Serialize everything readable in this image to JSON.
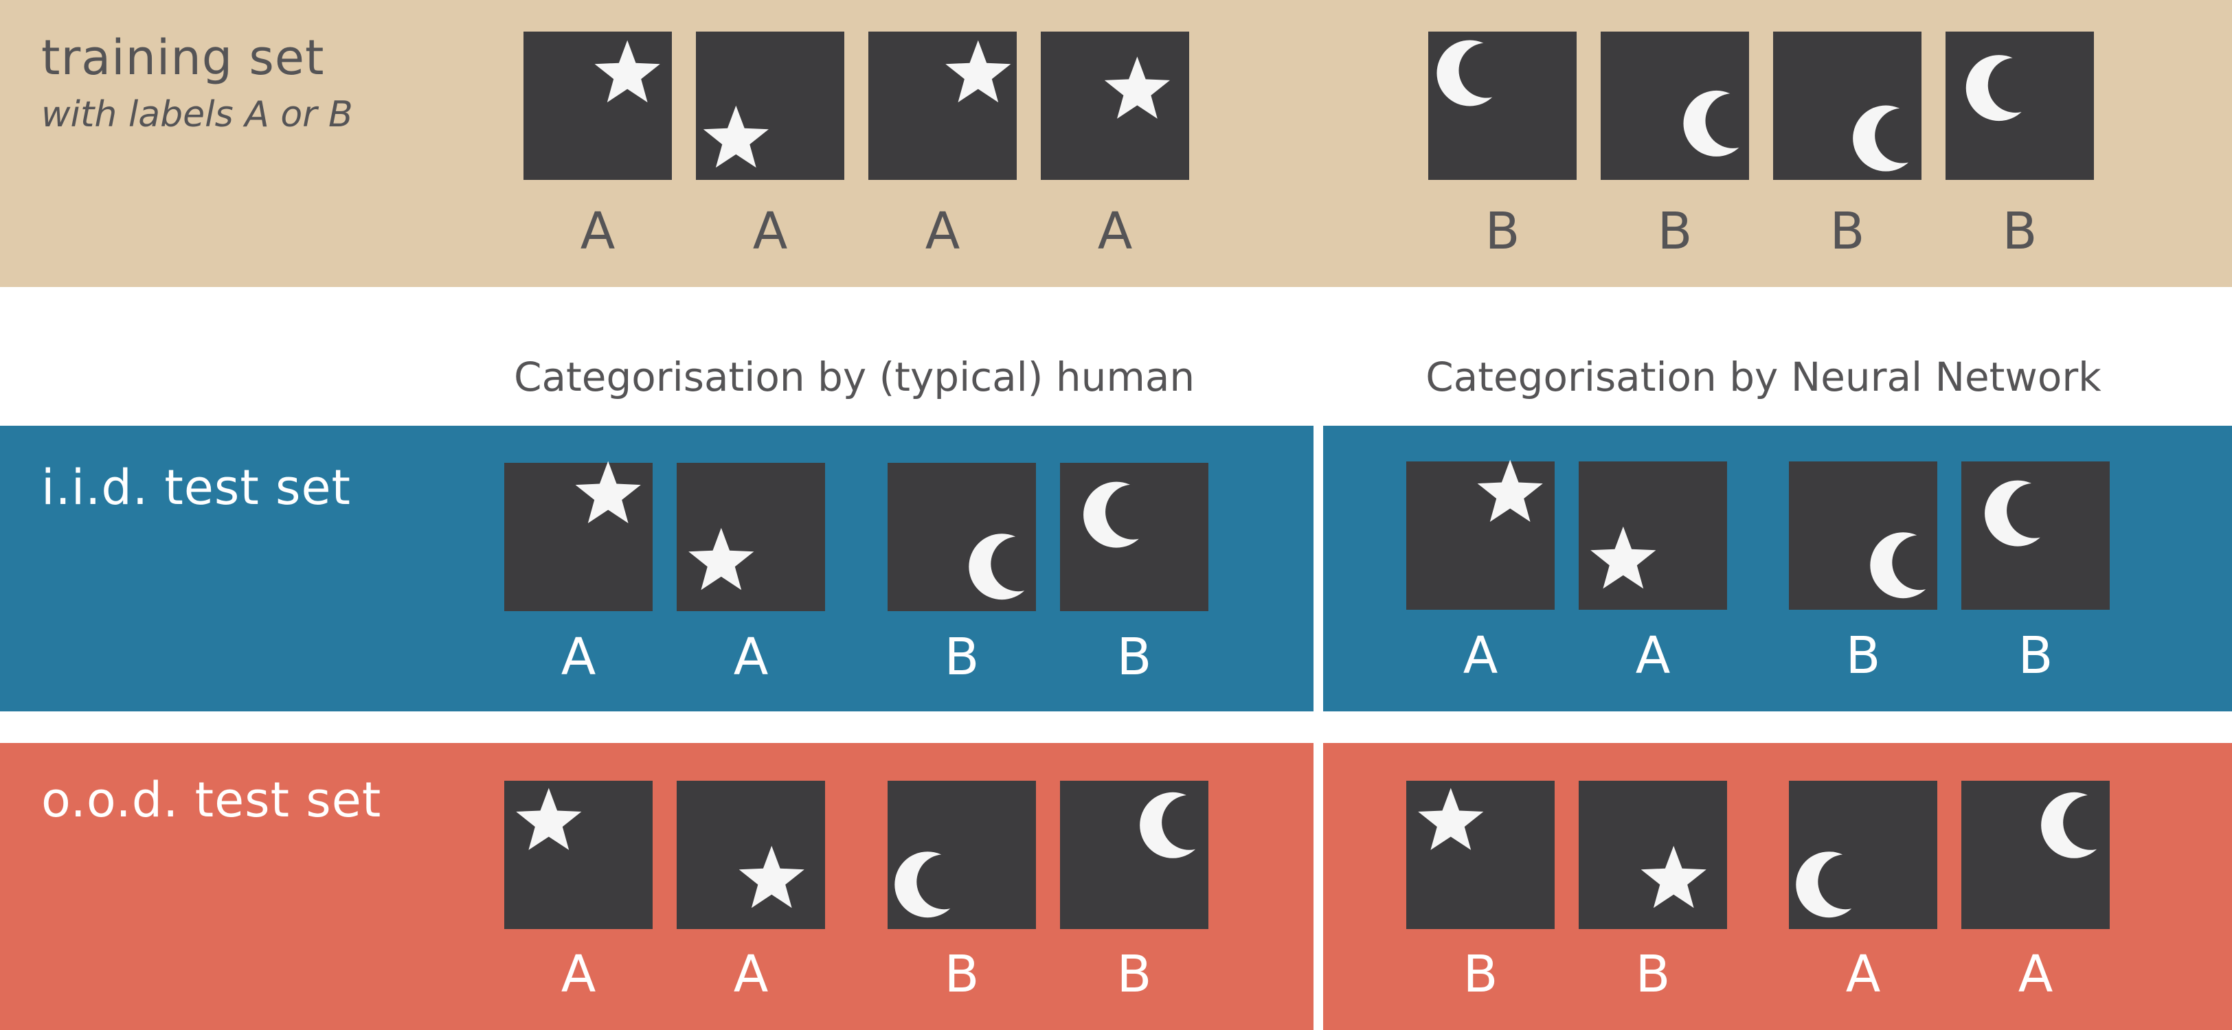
{
  "training": {
    "title": "training set",
    "subtitle": "with labels A or B",
    "tiles": [
      {
        "shape": "star",
        "fx": 0.7,
        "fy": 0.29,
        "label": "A"
      },
      {
        "shape": "star",
        "fx": 0.27,
        "fy": 0.73,
        "label": "A"
      },
      {
        "shape": "star",
        "fx": 0.74,
        "fy": 0.29,
        "label": "A"
      },
      {
        "shape": "star",
        "fx": 0.65,
        "fy": 0.4,
        "label": "A"
      },
      {
        "shape": "moon",
        "fx": 0.28,
        "fy": 0.28,
        "label": "B"
      },
      {
        "shape": "moon",
        "fx": 0.78,
        "fy": 0.62,
        "label": "B"
      },
      {
        "shape": "moon",
        "fx": 0.76,
        "fy": 0.72,
        "label": "B"
      },
      {
        "shape": "moon",
        "fx": 0.36,
        "fy": 0.38,
        "label": "B"
      }
    ]
  },
  "headers": {
    "human": "Categorisation by (typical) human",
    "network": "Categorisation by Neural Network"
  },
  "iid": {
    "title": "i.i.d. test set",
    "human": [
      {
        "shape": "star",
        "fx": 0.7,
        "fy": 0.22,
        "label": "A"
      },
      {
        "shape": "star",
        "fx": 0.3,
        "fy": 0.67,
        "label": "A"
      },
      {
        "shape": "moon",
        "fx": 0.77,
        "fy": 0.7,
        "label": "B"
      },
      {
        "shape": "moon",
        "fx": 0.38,
        "fy": 0.35,
        "label": "B"
      }
    ],
    "network": [
      {
        "shape": "star",
        "fx": 0.7,
        "fy": 0.22,
        "label": "A"
      },
      {
        "shape": "star",
        "fx": 0.3,
        "fy": 0.67,
        "label": "A"
      },
      {
        "shape": "moon",
        "fx": 0.77,
        "fy": 0.7,
        "label": "B"
      },
      {
        "shape": "moon",
        "fx": 0.38,
        "fy": 0.35,
        "label": "B"
      }
    ]
  },
  "ood": {
    "title": "o.o.d. test set",
    "human": [
      {
        "shape": "star",
        "fx": 0.3,
        "fy": 0.28,
        "label": "A"
      },
      {
        "shape": "star",
        "fx": 0.64,
        "fy": 0.67,
        "label": "A"
      },
      {
        "shape": "moon",
        "fx": 0.27,
        "fy": 0.7,
        "label": "B"
      },
      {
        "shape": "moon",
        "fx": 0.76,
        "fy": 0.3,
        "label": "B"
      }
    ],
    "network": [
      {
        "shape": "star",
        "fx": 0.3,
        "fy": 0.28,
        "label": "B"
      },
      {
        "shape": "star",
        "fx": 0.64,
        "fy": 0.67,
        "label": "B"
      },
      {
        "shape": "moon",
        "fx": 0.27,
        "fy": 0.7,
        "label": "A"
      },
      {
        "shape": "moon",
        "fx": 0.76,
        "fy": 0.3,
        "label": "A"
      }
    ]
  },
  "colors": {
    "training_band": "#e0cbab",
    "iid_band": "#27799f",
    "ood_band": "#e06c59",
    "tile": "#3d3c3e",
    "symbol": "#f6f6f6",
    "dark_text": "#555456",
    "light_text": "#ffffff"
  }
}
